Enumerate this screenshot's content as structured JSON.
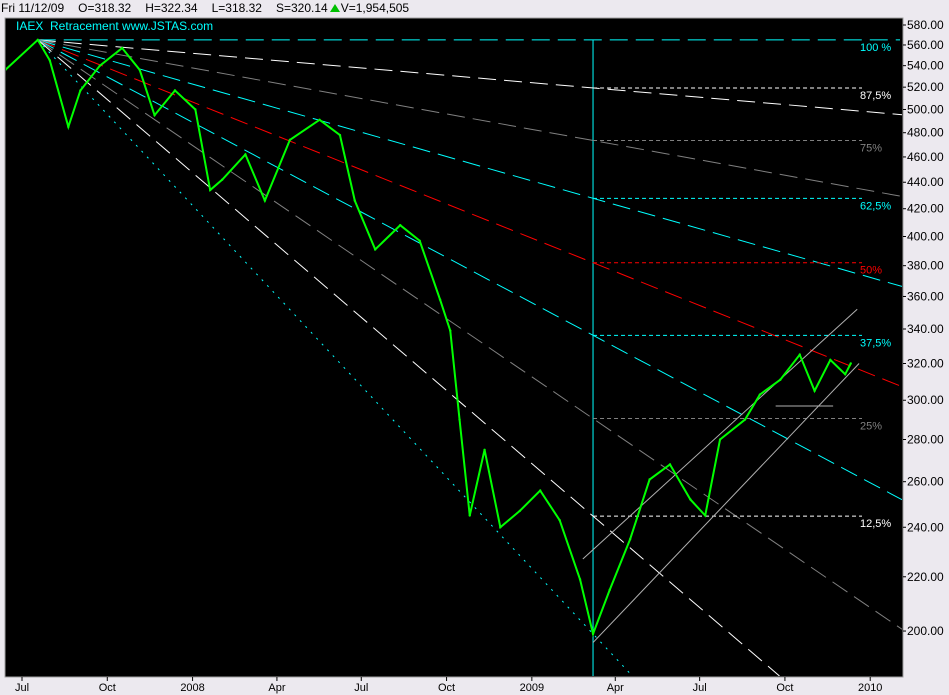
{
  "header": {
    "date": "Fri 11/12/09",
    "open": "O=318.32",
    "high": "H=322.34",
    "low": "L=318.32",
    "settle": "S=320.14",
    "volume": "V=1,954,505",
    "direction_icon": "up-triangle-icon"
  },
  "chart_data": {
    "type": "line",
    "title": "IAEX  Retracement www.JSTAS.com",
    "yscale": "log",
    "ylim": [
      188,
      585
    ],
    "xlim": [
      "2007-06-09",
      "2010-02-08"
    ],
    "grid": false,
    "background": "#000000",
    "colors": {
      "price": "#00ff00",
      "cyan": "#00ffff",
      "white": "#ffffff",
      "gray": "#808080",
      "red": "#ff0000",
      "title": "#00ffff"
    },
    "y_ticks": [
      "580.00",
      "560.00",
      "540.00",
      "520.00",
      "500.00",
      "480.00",
      "460.00",
      "440.00",
      "420.00",
      "400.00",
      "380.00",
      "360.00",
      "340.00",
      "320.00",
      "300.00",
      "280.00",
      "260.00",
      "240.00",
      "220.00",
      "200.00"
    ],
    "x_ticks": [
      {
        "label": "Jul",
        "date": "2007-07-01"
      },
      {
        "label": "Oct",
        "date": "2007-10-01"
      },
      {
        "label": "2008",
        "date": "2008-01-01"
      },
      {
        "label": "Apr",
        "date": "2008-04-01"
      },
      {
        "label": "Jul",
        "date": "2008-07-01"
      },
      {
        "label": "Oct",
        "date": "2008-10-01"
      },
      {
        "label": "2009",
        "date": "2009-01-01"
      },
      {
        "label": "Apr",
        "date": "2009-04-01"
      },
      {
        "label": "Jul",
        "date": "2009-07-01"
      },
      {
        "label": "Oct",
        "date": "2009-10-01"
      },
      {
        "label": "2010",
        "date": "2010-01-01"
      }
    ],
    "series": [
      {
        "values": [
          [
            "2007-06-13",
            536
          ],
          [
            "2007-07-18",
            565
          ],
          [
            "2007-07-31",
            545
          ],
          [
            "2007-08-20",
            485
          ],
          [
            "2007-09-02",
            517
          ],
          [
            "2007-09-23",
            540
          ],
          [
            "2007-10-17",
            557
          ],
          [
            "2007-11-05",
            536
          ],
          [
            "2007-11-21",
            495
          ],
          [
            "2007-12-13",
            517
          ],
          [
            "2008-01-04",
            500
          ],
          [
            "2008-01-20",
            434
          ],
          [
            "2008-02-02",
            442
          ],
          [
            "2008-02-27",
            462
          ],
          [
            "2008-03-19",
            426
          ],
          [
            "2008-04-15",
            474
          ],
          [
            "2008-05-17",
            491
          ],
          [
            "2008-06-08",
            478
          ],
          [
            "2008-06-24",
            426
          ],
          [
            "2008-07-16",
            391
          ],
          [
            "2008-08-12",
            408
          ],
          [
            "2008-09-02",
            397
          ],
          [
            "2008-09-24",
            358
          ],
          [
            "2008-10-05",
            339
          ],
          [
            "2008-10-15",
            290
          ],
          [
            "2008-10-26",
            245
          ],
          [
            "2008-11-11",
            275
          ],
          [
            "2008-11-28",
            240
          ],
          [
            "2008-12-19",
            247
          ],
          [
            "2009-01-10",
            256
          ],
          [
            "2009-01-31",
            243
          ],
          [
            "2009-02-22",
            219
          ],
          [
            "2009-03-08",
            199
          ],
          [
            "2009-03-26",
            215
          ],
          [
            "2009-04-17",
            235
          ],
          [
            "2009-05-08",
            261
          ],
          [
            "2009-05-30",
            268
          ],
          [
            "2009-06-21",
            252
          ],
          [
            "2009-07-07",
            245
          ],
          [
            "2009-07-23",
            280
          ],
          [
            "2009-08-19",
            290
          ],
          [
            "2009-09-04",
            303
          ],
          [
            "2009-09-26",
            311
          ],
          [
            "2009-10-17",
            325
          ],
          [
            "2009-11-02",
            305
          ],
          [
            "2009-11-19",
            322
          ],
          [
            "2009-12-05",
            314
          ],
          [
            "2009-12-11",
            320
          ]
        ]
      }
    ],
    "retracement": {
      "high": {
        "date": "2007-07-18",
        "price": 565
      },
      "low": {
        "date": "2009-03-08",
        "price": 199
      },
      "levels": [
        {
          "label": "100 %",
          "pct": 100,
          "color": "#00ffff"
        },
        {
          "label": "87,5%",
          "pct": 87.5,
          "color": "#ffffff"
        },
        {
          "label": "75%",
          "pct": 75,
          "color": "#808080"
        },
        {
          "label": "62,5%",
          "pct": 62.5,
          "color": "#00ffff"
        },
        {
          "label": "50%",
          "pct": 50,
          "color": "#ff0000"
        },
        {
          "label": "37,5%",
          "pct": 37.5,
          "color": "#00ffff"
        },
        {
          "label": "25%",
          "pct": 25,
          "color": "#808080"
        },
        {
          "label": "12,5%",
          "pct": 12.5,
          "color": "#ffffff"
        },
        {
          "label": "",
          "pct": 0,
          "color": "#00ffff"
        }
      ]
    },
    "trendlines": [
      {
        "from": [
          "2009-03-08",
          196
        ],
        "to": [
          "2009-12-20",
          320
        ],
        "color": "#b0b0b0"
      },
      {
        "from": [
          "2009-02-25",
          227
        ],
        "to": [
          "2009-12-18",
          352
        ],
        "color": "#b0b0b0"
      },
      {
        "from": [
          "2009-09-21",
          297
        ],
        "to": [
          "2009-11-22",
          297
        ],
        "color": "#b0b0b0"
      }
    ]
  }
}
